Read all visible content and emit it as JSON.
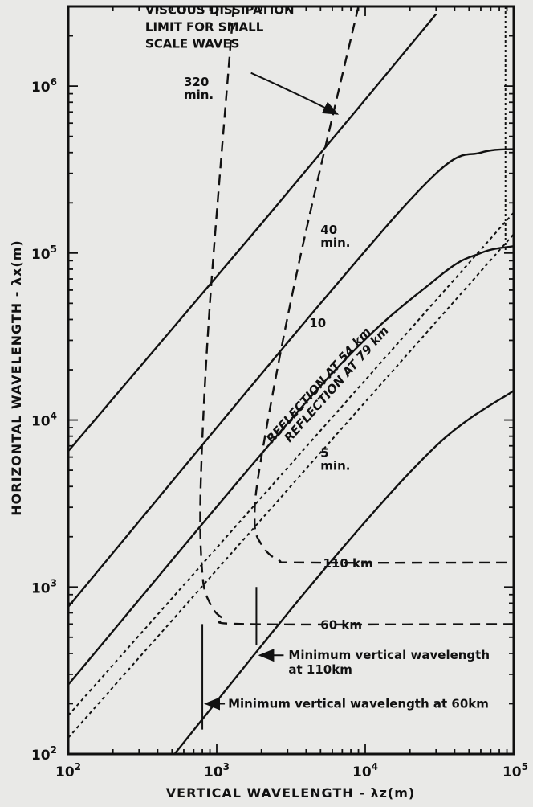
{
  "chart_data": {
    "type": "line",
    "title": "",
    "xlabel": "VERTICAL WAVELENGTH - λz(m)",
    "ylabel": "HORIZONTAL WAVELENGTH - λx(m)",
    "xscale": "log",
    "yscale": "log",
    "xlim": [
      100,
      100000
    ],
    "ylim": [
      100,
      3000000
    ],
    "x_ticks": [
      {
        "value": 100,
        "base": "10",
        "exp": "2"
      },
      {
        "value": 1000,
        "base": "10",
        "exp": "3"
      },
      {
        "value": 10000,
        "base": "10",
        "exp": "4"
      },
      {
        "value": 100000,
        "base": "10",
        "exp": "5"
      }
    ],
    "y_ticks": [
      {
        "value": 100,
        "base": "10",
        "exp": "2"
      },
      {
        "value": 1000,
        "base": "10",
        "exp": "3"
      },
      {
        "value": 10000,
        "base": "10",
        "exp": "4"
      },
      {
        "value": 100000,
        "base": "10",
        "exp": "5"
      },
      {
        "value": 1000000,
        "base": "10",
        "exp": "6"
      }
    ],
    "grid": false,
    "period_lines": [
      {
        "label_line1": "320",
        "label_line2": "min.",
        "label_x": 600,
        "label_y": 1000000,
        "points": [
          [
            100,
            6500
          ],
          [
            2000,
            150000
          ],
          [
            10000,
            830000
          ],
          [
            30000,
            2700000
          ]
        ]
      },
      {
        "label_line1": "40",
        "label_line2": "min.",
        "label_x": 5000,
        "label_y": 130000,
        "points": [
          [
            100,
            760
          ],
          [
            5000,
            50000
          ],
          [
            30000,
            300000
          ],
          [
            60000,
            400000
          ],
          [
            100000,
            420000
          ]
        ]
      },
      {
        "label_line1": "10",
        "label_line2": "",
        "label_x": 4200,
        "label_y": 36000,
        "points": [
          [
            100,
            260
          ],
          [
            5000,
            16000
          ],
          [
            30000,
            70000
          ],
          [
            60000,
            100000
          ],
          [
            100000,
            110000
          ]
        ]
      },
      {
        "label_line1": "5",
        "label_line2": "min.",
        "label_x": 5000,
        "label_y": 6000,
        "points": [
          [
            520,
            100
          ],
          [
            5000,
            1200
          ],
          [
            30000,
            7000
          ],
          [
            100000,
            15000
          ]
        ]
      }
    ],
    "reflection_lines": [
      {
        "label": "REFLECTION AT 54 km",
        "points": [
          [
            100,
            170
          ],
          [
            100000,
            175000
          ]
        ]
      },
      {
        "label": "REFLECTION AT 79 km",
        "points": [
          [
            100,
            125
          ],
          [
            100000,
            130000
          ]
        ]
      }
    ],
    "dissipation_curves": [
      {
        "label": "60 km",
        "points": [
          [
            1300,
            3000000
          ],
          [
            900,
            50000
          ],
          [
            780,
            4000
          ],
          [
            800,
            1200
          ],
          [
            900,
            800
          ],
          [
            1100,
            650
          ],
          [
            1600,
            600
          ],
          [
            100000,
            600
          ]
        ]
      },
      {
        "label": "110 km",
        "points": [
          [
            9000,
            3000000
          ],
          [
            3500,
            80000
          ],
          [
            2000,
            6000
          ],
          [
            1800,
            2500
          ],
          [
            2000,
            1800
          ],
          [
            2600,
            1450
          ],
          [
            4000,
            1400
          ],
          [
            100000,
            1400
          ]
        ]
      }
    ],
    "vertical_dotted": {
      "x": 88000,
      "from": 100000,
      "to": 3000000
    },
    "annotations": {
      "viscous": [
        "VISCOUS DISSIPATION",
        "LIMIT FOR SMALL",
        "SCALE WAVES"
      ],
      "min110": [
        "Minimum vertical wavelength",
        "at 110km"
      ],
      "min60": "Minimum vertical wavelength at 60km"
    }
  }
}
